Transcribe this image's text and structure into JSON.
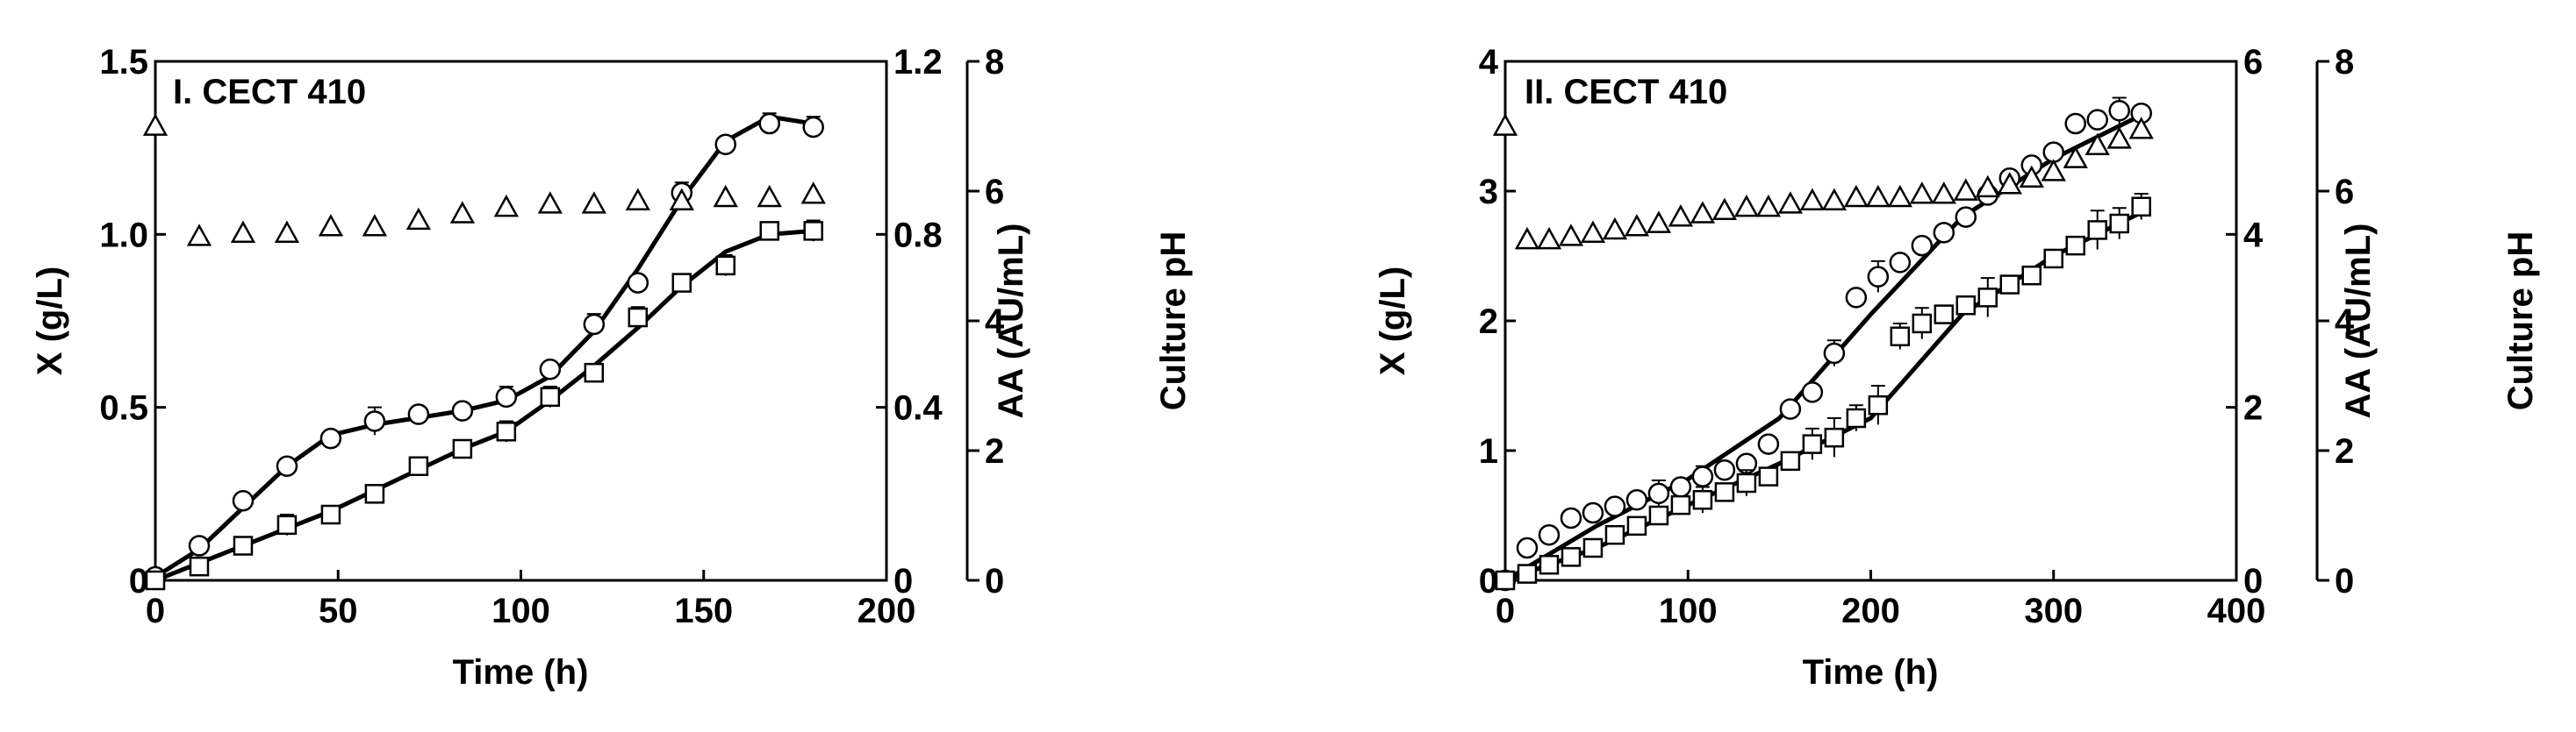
{
  "chart_data": [
    {
      "type": "scatter",
      "title": "I. CECT 410",
      "xlabel": "Time (h)",
      "ylabel_left": "X (g/L)",
      "ylabel_right": "AA (AU/mL)",
      "ylabel_right2": "Culture pH",
      "xlim": [
        0,
        200
      ],
      "ylim_left": [
        0,
        1.5
      ],
      "ylim_right": [
        0,
        1.2
      ],
      "ylim_right2": [
        0,
        8
      ],
      "x_ticks": [
        "0",
        "50",
        "100",
        "150",
        "200"
      ],
      "y_left_ticks": [
        "0",
        "0.5",
        "1.0",
        "1.5"
      ],
      "y_right_ticks": [
        "0",
        "0.4",
        "0.8",
        "1.2"
      ],
      "y_right2_ticks": [
        "0",
        "2",
        "4",
        "6",
        "8"
      ],
      "grid": false,
      "series": [
        {
          "marker": "circle",
          "axis": "left",
          "fit": true,
          "x": [
            0,
            12,
            24,
            36,
            48,
            60,
            72,
            84,
            96,
            108,
            120,
            132,
            144,
            156,
            168,
            180
          ],
          "y": [
            0.01,
            0.1,
            0.23,
            0.33,
            0.41,
            0.46,
            0.48,
            0.49,
            0.53,
            0.61,
            0.74,
            0.86,
            1.12,
            1.26,
            1.32,
            1.31
          ],
          "err": [
            0,
            0,
            0,
            0,
            0,
            0.04,
            0,
            0,
            0.03,
            0,
            0.03,
            0,
            0.03,
            0,
            0.03,
            0.03
          ],
          "fit_x": [
            0,
            12,
            24,
            36,
            48,
            60,
            72,
            84,
            96,
            108,
            120,
            132,
            144,
            156,
            168,
            180
          ],
          "fit_y": [
            0.01,
            0.09,
            0.21,
            0.33,
            0.42,
            0.45,
            0.47,
            0.49,
            0.52,
            0.59,
            0.72,
            0.9,
            1.1,
            1.27,
            1.34,
            1.32
          ]
        },
        {
          "marker": "square",
          "axis": "left",
          "fit": true,
          "x": [
            0,
            12,
            24,
            36,
            48,
            60,
            72,
            84,
            96,
            108,
            120,
            132,
            144,
            156,
            168,
            180
          ],
          "y": [
            0.0,
            0.04,
            0.1,
            0.16,
            0.19,
            0.25,
            0.33,
            0.38,
            0.43,
            0.53,
            0.6,
            0.76,
            0.86,
            0.91,
            1.01,
            1.01
          ],
          "err": [
            0,
            0,
            0,
            0.03,
            0,
            0.02,
            0,
            0,
            0.03,
            0.03,
            0,
            0.03,
            0,
            0.03,
            0,
            0.03
          ],
          "fit_x": [
            0,
            12,
            24,
            36,
            48,
            60,
            72,
            84,
            96,
            108,
            120,
            132,
            144,
            156,
            168,
            180
          ],
          "fit_y": [
            0.0,
            0.05,
            0.1,
            0.15,
            0.2,
            0.26,
            0.32,
            0.38,
            0.43,
            0.52,
            0.62,
            0.73,
            0.85,
            0.95,
            1.0,
            1.01
          ]
        },
        {
          "marker": "triangle",
          "axis": "right2",
          "fit": false,
          "x": [
            0,
            12,
            24,
            36,
            48,
            60,
            72,
            84,
            96,
            108,
            120,
            132,
            144,
            156,
            168,
            180
          ],
          "y": [
            7.0,
            5.3,
            5.35,
            5.35,
            5.45,
            5.45,
            5.55,
            5.65,
            5.75,
            5.8,
            5.8,
            5.85,
            5.85,
            5.9,
            5.9,
            5.95
          ]
        }
      ]
    },
    {
      "type": "scatter",
      "title": "II. CECT 410",
      "xlabel": "Time (h)",
      "ylabel_left": "X (g/L)",
      "ylabel_right": "AA (AU/mL)",
      "ylabel_right2": "Culture pH",
      "xlim": [
        0,
        400
      ],
      "ylim_left": [
        0,
        4
      ],
      "ylim_right": [
        0,
        6
      ],
      "ylim_right2": [
        0,
        8
      ],
      "x_ticks": [
        "0",
        "100",
        "200",
        "300",
        "400"
      ],
      "y_left_ticks": [
        "0",
        "1",
        "2",
        "3",
        "4"
      ],
      "y_right_ticks": [
        "0",
        "2",
        "4",
        "6"
      ],
      "y_right2_ticks": [
        "0",
        "2",
        "4",
        "6",
        "8"
      ],
      "grid": false,
      "series": [
        {
          "marker": "circle",
          "axis": "left",
          "fit": true,
          "x": [
            0,
            12,
            24,
            36,
            48,
            60,
            72,
            84,
            96,
            108,
            120,
            132,
            144,
            156,
            168,
            180,
            192,
            204,
            216,
            228,
            240,
            252,
            264,
            276,
            288,
            300,
            312,
            324,
            336,
            348
          ],
          "y": [
            0.0,
            0.25,
            0.35,
            0.48,
            0.52,
            0.57,
            0.62,
            0.67,
            0.72,
            0.8,
            0.85,
            0.9,
            1.05,
            1.32,
            1.45,
            1.75,
            2.18,
            2.34,
            2.45,
            2.58,
            2.68,
            2.8,
            2.97,
            3.1,
            3.2,
            3.3,
            3.52,
            3.55,
            3.62,
            3.6
          ],
          "err": [
            0,
            0,
            0,
            0,
            0,
            0,
            0,
            0.1,
            0,
            0.08,
            0,
            0,
            0,
            0,
            0,
            0.1,
            0,
            0.12,
            0,
            0,
            0,
            0,
            0,
            0,
            0,
            0,
            0,
            0,
            0.1,
            0
          ],
          "fit_x": [
            0,
            50,
            100,
            150,
            200,
            250,
            300,
            350
          ],
          "fit_y": [
            0.0,
            0.42,
            0.78,
            1.25,
            2.05,
            2.8,
            3.25,
            3.6
          ]
        },
        {
          "marker": "square",
          "axis": "left",
          "fit": true,
          "x": [
            0,
            12,
            24,
            36,
            48,
            60,
            72,
            84,
            96,
            108,
            120,
            132,
            144,
            156,
            168,
            180,
            192,
            204,
            216,
            228,
            240,
            252,
            264,
            276,
            288,
            300,
            312,
            324,
            336,
            348
          ],
          "y": [
            0.0,
            0.05,
            0.12,
            0.18,
            0.25,
            0.35,
            0.42,
            0.5,
            0.58,
            0.62,
            0.68,
            0.75,
            0.8,
            0.92,
            1.05,
            1.1,
            1.25,
            1.35,
            1.88,
            1.98,
            2.05,
            2.12,
            2.18,
            2.28,
            2.35,
            2.48,
            2.58,
            2.7,
            2.75,
            2.88
          ],
          "err": [
            0,
            0,
            0,
            0,
            0,
            0,
            0,
            0,
            0,
            0.1,
            0,
            0.1,
            0,
            0,
            0.12,
            0.15,
            0.1,
            0.15,
            0.1,
            0.12,
            0,
            0,
            0.15,
            0,
            0,
            0,
            0,
            0.15,
            0.12,
            0.1
          ],
          "fit_x": [
            0,
            50,
            100,
            150,
            200,
            250,
            300,
            350
          ],
          "fit_y": [
            0.0,
            0.25,
            0.58,
            0.9,
            1.25,
            2.05,
            2.5,
            2.85
          ]
        },
        {
          "marker": "triangle",
          "axis": "right2",
          "fit": false,
          "x": [
            0,
            12,
            24,
            36,
            48,
            60,
            72,
            84,
            96,
            108,
            120,
            132,
            144,
            156,
            168,
            180,
            192,
            204,
            216,
            228,
            240,
            252,
            264,
            276,
            288,
            300,
            312,
            324,
            336,
            348
          ],
          "y": [
            7.0,
            5.25,
            5.25,
            5.3,
            5.35,
            5.4,
            5.45,
            5.5,
            5.6,
            5.65,
            5.7,
            5.75,
            5.75,
            5.8,
            5.85,
            5.85,
            5.9,
            5.9,
            5.9,
            5.95,
            5.95,
            6.0,
            6.05,
            6.1,
            6.2,
            6.3,
            6.5,
            6.7,
            6.8,
            6.95
          ]
        }
      ]
    }
  ]
}
